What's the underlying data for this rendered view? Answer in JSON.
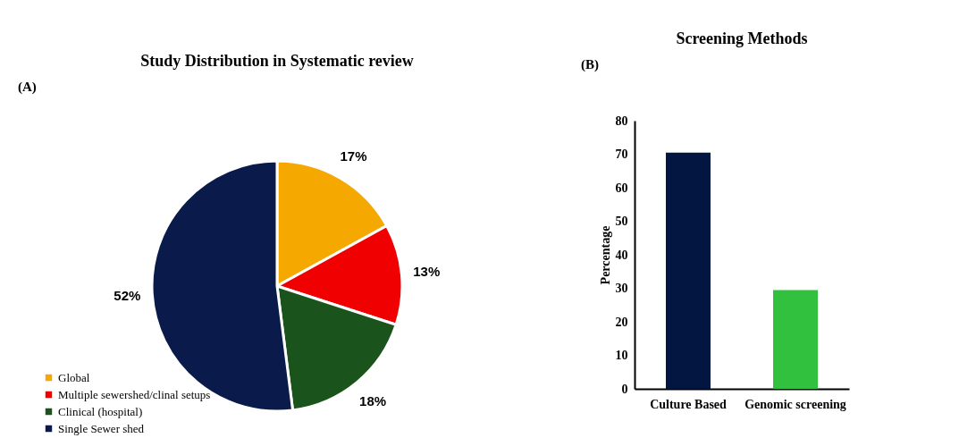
{
  "chart_data": [
    {
      "type": "pie",
      "title": "Study Distribution in Systematic review",
      "annotations": [
        "(A)"
      ],
      "categories": [
        "Global",
        "Multiple sewershed/clinal setups",
        "Clinical (hospital)",
        "Single Sewer shed"
      ],
      "values": [
        17,
        13,
        18,
        52
      ],
      "colors": [
        "#f5a800",
        "#f00000",
        "#1a531b",
        "#0a1a4a"
      ],
      "value_labels": [
        "17%",
        "13%",
        "18%",
        "52%"
      ],
      "legend": "bottom left"
    },
    {
      "type": "bar",
      "title": "Screening  Methods",
      "annotations": [
        "(B)"
      ],
      "ylabel": "Percentage",
      "categories": [
        "Culture Based",
        "Genomic screening"
      ],
      "colors": [
        "#021641",
        "#31c13e"
      ],
      "values": [
        70.5,
        29.5
      ],
      "ylim": [
        0,
        80
      ],
      "yticks": [
        0,
        10,
        20,
        30,
        40,
        50,
        60,
        70,
        80
      ],
      "grid": false
    }
  ]
}
